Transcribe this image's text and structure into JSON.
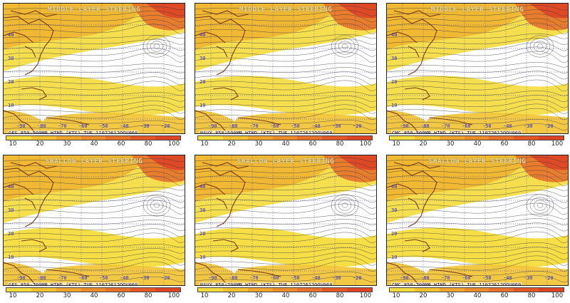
{
  "rows": [
    {
      "title": "MIDDLE LAYER STEERING"
    },
    {
      "title": "SHALLOW LAYER STEERING"
    }
  ],
  "panels": [
    {
      "row": 0,
      "col": 0,
      "label": "GFS 850-500MB WIND (KTS) TUE 11072612OOV060"
    },
    {
      "row": 0,
      "col": 1,
      "label": "NAVY 850-500MB WIND (KTS) TUE 11072612OOV060"
    },
    {
      "row": 0,
      "col": 2,
      "label": "CMC 850-500MB WIND (KTS) TUE 11072612OOV060"
    },
    {
      "row": 1,
      "col": 0,
      "label": "GFS 850-700MB WIND (KTS) TUE 11072612OOV060"
    },
    {
      "row": 1,
      "col": 1,
      "label": "NAVY 850-700MB WIND (KTS) TUE 11072612OOV060"
    },
    {
      "row": 1,
      "col": 2,
      "label": "CMC 850-700MB WIND (KTS) TUE 11072612OOV060"
    }
  ],
  "legend": {
    "ticks": [
      "10",
      "20",
      "30",
      "40",
      "60",
      "80",
      "100"
    ],
    "colors": [
      "#f5dc3c",
      "#f2c230",
      "#efa52c",
      "#ec8c2a",
      "#e8722a",
      "#e45828",
      "#dd4426"
    ]
  },
  "lat_labels": [
    "40",
    "30",
    "20",
    "10"
  ],
  "lon_labels": [
    "-90",
    "-80",
    "-70",
    "-60",
    "-50",
    "-40",
    "-30",
    "-20"
  ]
}
